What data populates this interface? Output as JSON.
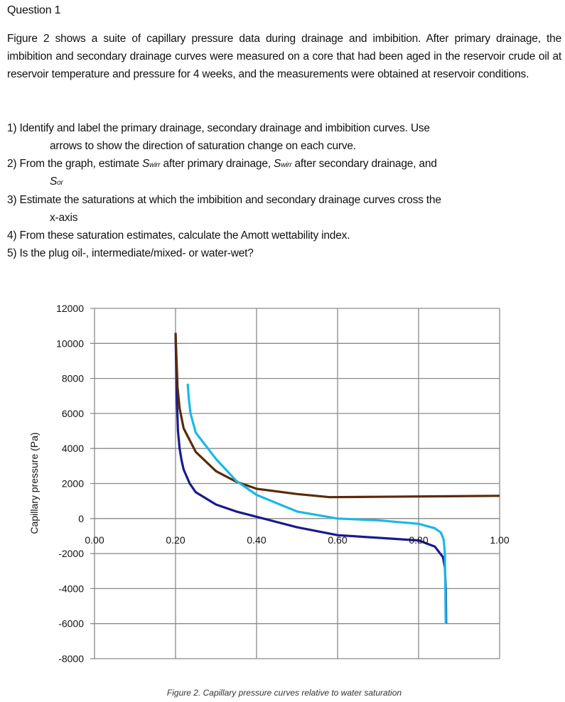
{
  "question": {
    "title": "Question 1",
    "intro": "Figure 2 shows a suite of capillary pressure data during drainage and imbibition. After primary drainage, the imbibition and secondary drainage curves were measured on a core that had been aged in the reservoir crude oil at reservoir temperature and pressure for 4 weeks, and the measurements were obtained at reservoir conditions.",
    "items": [
      {
        "line1": "1) Identify and label the primary drainage, secondary drainage and imbibition curves.  Use",
        "line2": "arrows to show the direction of saturation change on each curve."
      },
      {
        "line1a": "2) From the graph, estimate ",
        "s1": "S",
        "s1sub": "wirr",
        "line1b": " after primary drainage, ",
        "s2": "S",
        "s2sub": "wirr",
        "line1c": " after secondary drainage, and",
        "s3": "S",
        "s3sub": "or"
      },
      {
        "line1": "3) Estimate the saturations at which the imbibition and secondary drainage curves cross the",
        "line2": "x-axis"
      },
      {
        "line1": "4) From these saturation estimates, calculate the Amott wettability index."
      },
      {
        "line1": "5) Is the plug oil-, intermediate/mixed- or water-wet?"
      }
    ]
  },
  "chart_data": {
    "type": "line",
    "caption": "Figure 2. Capillary pressure curves relative to water saturation",
    "ylabel": "Capillary pressure (Pa)",
    "xlabel": "",
    "xlim": [
      0,
      1
    ],
    "ylim": [
      -8000,
      12000
    ],
    "x_ticks": [
      "0.00",
      "0.20",
      "0.40",
      "0.60",
      "0.80",
      "1.00"
    ],
    "y_ticks": [
      "12000",
      "10000",
      "8000",
      "6000",
      "4000",
      "2000",
      "0",
      "-2000",
      "-4000",
      "-6000",
      "-8000"
    ],
    "grid": true,
    "series": [
      {
        "color": "#1a1a8c",
        "points": [
          [
            0.2,
            10600
          ],
          [
            0.203,
            7000
          ],
          [
            0.206,
            5000
          ],
          [
            0.21,
            4000
          ],
          [
            0.215,
            3300
          ],
          [
            0.22,
            2800
          ],
          [
            0.235,
            2000
          ],
          [
            0.25,
            1500
          ],
          [
            0.3,
            800
          ],
          [
            0.35,
            400
          ],
          [
            0.4,
            100
          ],
          [
            0.5,
            -500
          ],
          [
            0.6,
            -950
          ],
          [
            0.7,
            -1100
          ],
          [
            0.8,
            -1250
          ],
          [
            0.84,
            -1600
          ],
          [
            0.86,
            -2200
          ],
          [
            0.865,
            -2800
          ],
          [
            0.867,
            -4000
          ],
          [
            0.868,
            -6000
          ]
        ]
      },
      {
        "color": "#5a2a0a",
        "points": [
          [
            0.2,
            10600
          ],
          [
            0.205,
            7500
          ],
          [
            0.21,
            6300
          ],
          [
            0.22,
            5150
          ],
          [
            0.25,
            3800
          ],
          [
            0.3,
            2700
          ],
          [
            0.35,
            2100
          ],
          [
            0.4,
            1700
          ],
          [
            0.5,
            1400
          ],
          [
            0.58,
            1220
          ],
          [
            0.7,
            1240
          ],
          [
            0.85,
            1270
          ],
          [
            1.0,
            1300
          ]
        ]
      },
      {
        "color": "#1ab8e6",
        "points": [
          [
            0.23,
            7700
          ],
          [
            0.233,
            6800
          ],
          [
            0.237,
            6000
          ],
          [
            0.25,
            4900
          ],
          [
            0.3,
            3400
          ],
          [
            0.35,
            2150
          ],
          [
            0.4,
            1350
          ],
          [
            0.5,
            400
          ],
          [
            0.6,
            0
          ],
          [
            0.7,
            -100
          ],
          [
            0.8,
            -300
          ],
          [
            0.84,
            -550
          ],
          [
            0.855,
            -800
          ],
          [
            0.862,
            -1200
          ],
          [
            0.865,
            -2000
          ],
          [
            0.866,
            -4000
          ],
          [
            0.867,
            -6000
          ]
        ]
      }
    ]
  }
}
